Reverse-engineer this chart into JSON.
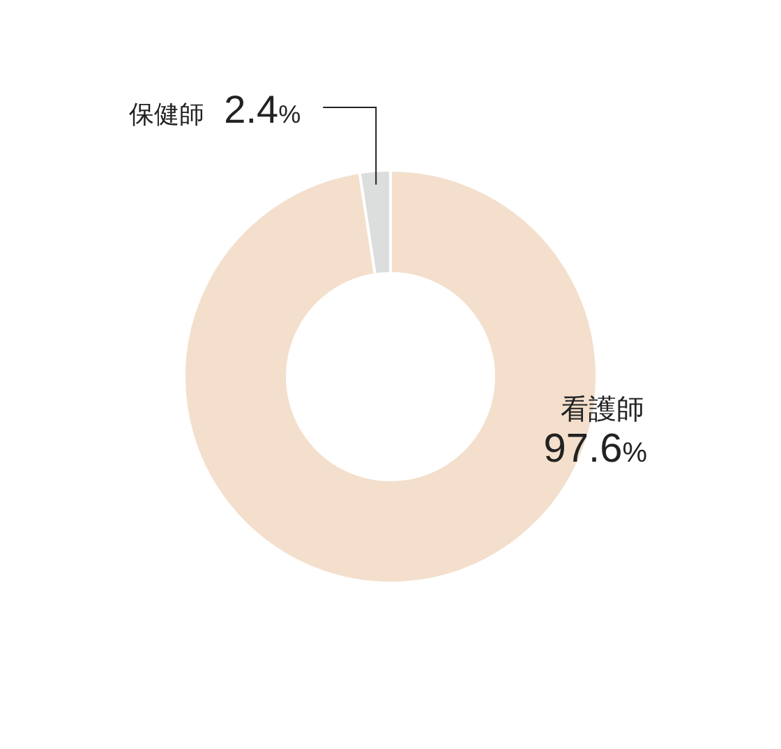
{
  "chart_data": {
    "type": "donut",
    "categories": [
      "保健師",
      "看護師"
    ],
    "values": [
      2.4,
      97.6
    ],
    "colors": [
      "#dcdddd",
      "#f3dfcc"
    ],
    "value_labels": [
      "2.4%",
      "97.6%"
    ]
  }
}
